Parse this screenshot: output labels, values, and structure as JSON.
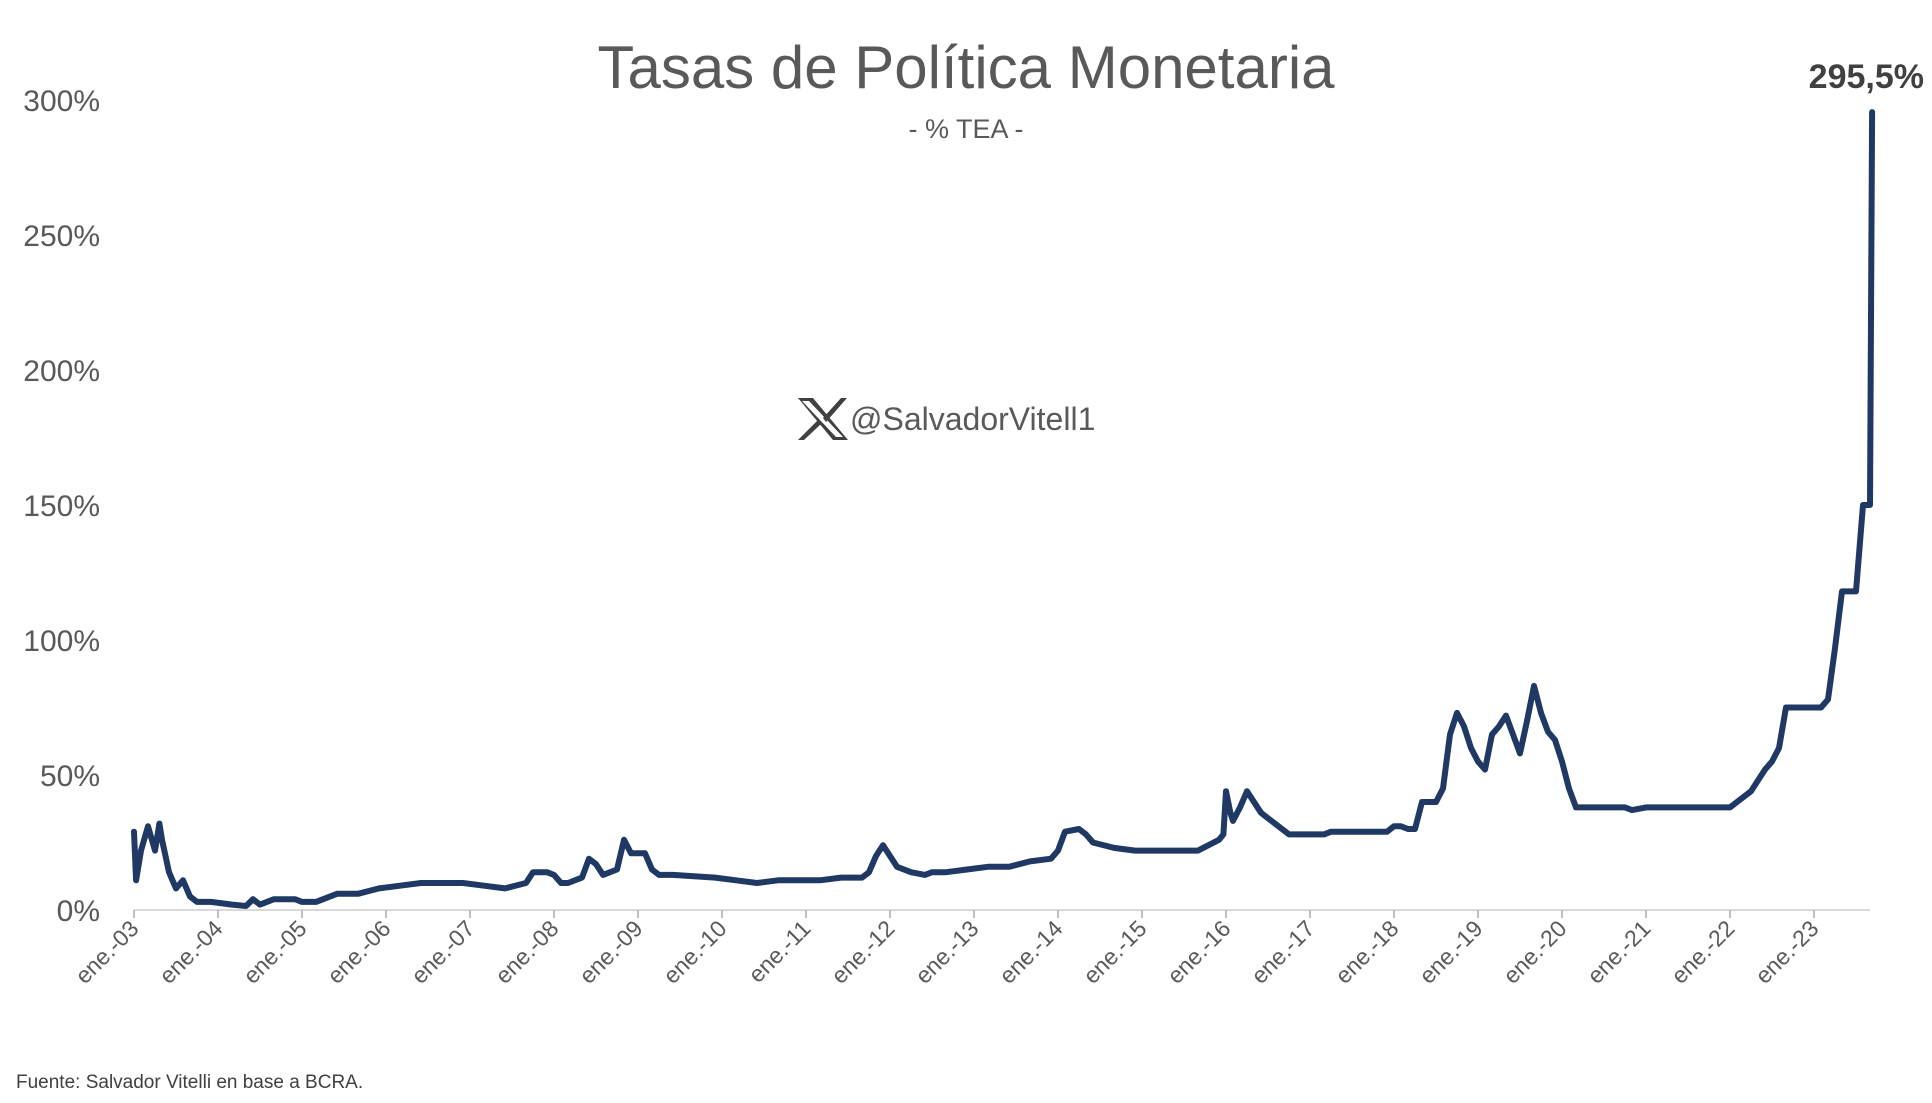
{
  "chart_data": {
    "type": "line",
    "title": "Tasas de Política Monetaria",
    "subtitle": "- % TEA -",
    "xlabel": "",
    "ylabel": "",
    "ylim": [
      0,
      300
    ],
    "yticks": [
      0,
      50,
      100,
      150,
      200,
      250,
      300
    ],
    "ytick_labels": [
      "0%",
      "50%",
      "100%",
      "150%",
      "200%",
      "250%",
      "300%"
    ],
    "xticks": [
      "ene.-03",
      "ene.-04",
      "ene.-05",
      "ene.-06",
      "ene.-07",
      "ene.-08",
      "ene.-09",
      "ene.-10",
      "ene.-11",
      "ene.-12",
      "ene.-13",
      "ene.-14",
      "ene.-15",
      "ene.-16",
      "ene.-17",
      "ene.-18",
      "ene.-19",
      "ene.-20",
      "ene.-21",
      "ene.-22",
      "ene.-23"
    ],
    "xlim": [
      "2003-01",
      "2023-09"
    ],
    "line_color": "#1f3864",
    "grid": false,
    "annotation": "295,5%",
    "series": [
      {
        "name": "",
        "points": [
          [
            "2003-01",
            29
          ],
          [
            "2003-01-10",
            11
          ],
          [
            "2003-02",
            22
          ],
          [
            "2003-03",
            31
          ],
          [
            "2003-04",
            22
          ],
          [
            "2003-04-20",
            32
          ],
          [
            "2003-05",
            26
          ],
          [
            "2003-06",
            14
          ],
          [
            "2003-07",
            8
          ],
          [
            "2003-08",
            11
          ],
          [
            "2003-09",
            5
          ],
          [
            "2003-10",
            3
          ],
          [
            "2003-12",
            3
          ],
          [
            "2004-03",
            2
          ],
          [
            "2004-05",
            1.5
          ],
          [
            "2004-06",
            4
          ],
          [
            "2004-07",
            2
          ],
          [
            "2004-09",
            4
          ],
          [
            "2004-12",
            4
          ],
          [
            "2005-01",
            3
          ],
          [
            "2005-03",
            3
          ],
          [
            "2005-06",
            6
          ],
          [
            "2005-09",
            6
          ],
          [
            "2005-12",
            8
          ],
          [
            "2006-03",
            9
          ],
          [
            "2006-06",
            10
          ],
          [
            "2006-09",
            10
          ],
          [
            "2006-12",
            10
          ],
          [
            "2007-03",
            9
          ],
          [
            "2007-06",
            8
          ],
          [
            "2007-09",
            10
          ],
          [
            "2007-10",
            14
          ],
          [
            "2007-12",
            14
          ],
          [
            "2008-01",
            13
          ],
          [
            "2008-02",
            10
          ],
          [
            "2008-03",
            10
          ],
          [
            "2008-05",
            12
          ],
          [
            "2008-06",
            19
          ],
          [
            "2008-07",
            17
          ],
          [
            "2008-08",
            13
          ],
          [
            "2008-10",
            15
          ],
          [
            "2008-11",
            26
          ],
          [
            "2008-12",
            21
          ],
          [
            "2009-02",
            21
          ],
          [
            "2009-03",
            15
          ],
          [
            "2009-04",
            13
          ],
          [
            "2009-06",
            13
          ],
          [
            "2009-12",
            12
          ],
          [
            "2010-03",
            11
          ],
          [
            "2010-06",
            10
          ],
          [
            "2010-09",
            11
          ],
          [
            "2010-12",
            11
          ],
          [
            "2011-03",
            11
          ],
          [
            "2011-06",
            12
          ],
          [
            "2011-09",
            12
          ],
          [
            "2011-10",
            14
          ],
          [
            "2011-11",
            20
          ],
          [
            "2011-12",
            24
          ],
          [
            "2012-01",
            20
          ],
          [
            "2012-02",
            16
          ],
          [
            "2012-04",
            14
          ],
          [
            "2012-06",
            13
          ],
          [
            "2012-07",
            14
          ],
          [
            "2012-09",
            14
          ],
          [
            "2012-12",
            15
          ],
          [
            "2013-03",
            16
          ],
          [
            "2013-06",
            16
          ],
          [
            "2013-09",
            18
          ],
          [
            "2013-12",
            19
          ],
          [
            "2014-01",
            22
          ],
          [
            "2014-02",
            29
          ],
          [
            "2014-04",
            30
          ],
          [
            "2014-05",
            28
          ],
          [
            "2014-06",
            25
          ],
          [
            "2014-09",
            23
          ],
          [
            "2014-12",
            22
          ],
          [
            "2015-03",
            22
          ],
          [
            "2015-06",
            22
          ],
          [
            "2015-09",
            22
          ],
          [
            "2015-12",
            26
          ],
          [
            "2015-12-20",
            28
          ],
          [
            "2016-01",
            44
          ],
          [
            "2016-01-20",
            36
          ],
          [
            "2016-02",
            33
          ],
          [
            "2016-03",
            38
          ],
          [
            "2016-04",
            44
          ],
          [
            "2016-05",
            40
          ],
          [
            "2016-06",
            36
          ],
          [
            "2016-07",
            34
          ],
          [
            "2016-08",
            32
          ],
          [
            "2016-09",
            30
          ],
          [
            "2016-10",
            28
          ],
          [
            "2017-01",
            28
          ],
          [
            "2017-03",
            28
          ],
          [
            "2017-04",
            29
          ],
          [
            "2017-07",
            29
          ],
          [
            "2017-12",
            29
          ],
          [
            "2018-01",
            31
          ],
          [
            "2018-02",
            31
          ],
          [
            "2018-03",
            30
          ],
          [
            "2018-04",
            30
          ],
          [
            "2018-05",
            40
          ],
          [
            "2018-06",
            40
          ],
          [
            "2018-07",
            40
          ],
          [
            "2018-08",
            45
          ],
          [
            "2018-09",
            65
          ],
          [
            "2018-10",
            73
          ],
          [
            "2018-11",
            68
          ],
          [
            "2018-12",
            60
          ],
          [
            "2019-01",
            55
          ],
          [
            "2019-02",
            52
          ],
          [
            "2019-03",
            65
          ],
          [
            "2019-04",
            68
          ],
          [
            "2019-05",
            72
          ],
          [
            "2019-06",
            65
          ],
          [
            "2019-07",
            58
          ],
          [
            "2019-08",
            70
          ],
          [
            "2019-09",
            83
          ],
          [
            "2019-10",
            73
          ],
          [
            "2019-11",
            66
          ],
          [
            "2019-12",
            63
          ],
          [
            "2020-01",
            55
          ],
          [
            "2020-02",
            45
          ],
          [
            "2020-03",
            38
          ],
          [
            "2020-04",
            38
          ],
          [
            "2020-10",
            38
          ],
          [
            "2020-11",
            37
          ],
          [
            "2021-01",
            38
          ],
          [
            "2021-12",
            38
          ],
          [
            "2022-01",
            38
          ],
          [
            "2022-02",
            40
          ],
          [
            "2022-03",
            42
          ],
          [
            "2022-04",
            44
          ],
          [
            "2022-05",
            48
          ],
          [
            "2022-06",
            52
          ],
          [
            "2022-07",
            55
          ],
          [
            "2022-08",
            60
          ],
          [
            "2022-09",
            75
          ],
          [
            "2022-10",
            75
          ],
          [
            "2022-12",
            75
          ],
          [
            "2023-01",
            75
          ],
          [
            "2023-02",
            75
          ],
          [
            "2023-03",
            78
          ],
          [
            "2023-04",
            97
          ],
          [
            "2023-05",
            118
          ],
          [
            "2023-06",
            118
          ],
          [
            "2023-07",
            118
          ],
          [
            "2023-08",
            150
          ],
          [
            "2023-09",
            150
          ],
          [
            "2023-09-10",
            295.5
          ]
        ]
      }
    ]
  },
  "watermark": {
    "icon": "x-logo-icon",
    "handle": "@SalvadorVitell1"
  },
  "source": "Fuente: Salvador Vitelli en base a BCRA."
}
